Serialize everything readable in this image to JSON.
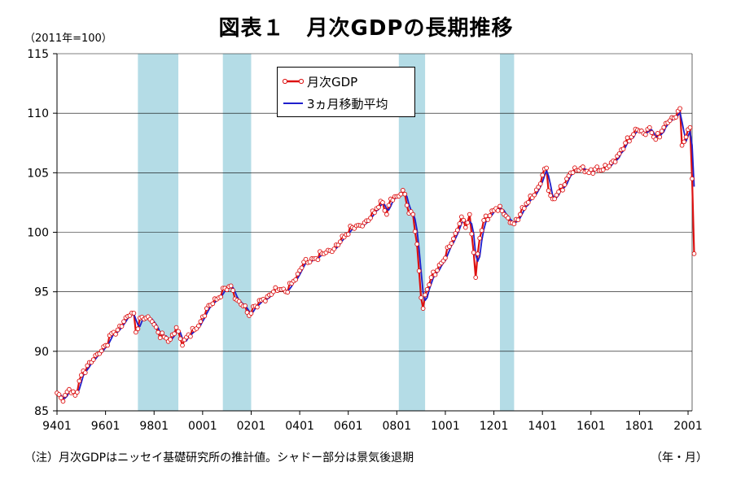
{
  "title": "図表１　月次GDPの長期推移",
  "unit_label": "（2011年=100）",
  "note": "（注）月次GDPはニッセイ基礎研究所の推計値。シャドー部分は景気後退期",
  "x_unit": "（年・月）",
  "colors": {
    "monthly": "#dd1111",
    "avg": "#1f1fcc",
    "shade": "#b4dce6"
  },
  "chart_data": {
    "type": "line",
    "ylim": [
      85,
      115
    ],
    "yticks": [
      85,
      90,
      95,
      100,
      105,
      110,
      115
    ],
    "xlim": [
      0,
      314
    ],
    "xticks": [
      {
        "label": "9401",
        "i": 0
      },
      {
        "label": "9601",
        "i": 24
      },
      {
        "label": "9801",
        "i": 48
      },
      {
        "label": "0001",
        "i": 72
      },
      {
        "label": "0201",
        "i": 96
      },
      {
        "label": "0401",
        "i": 120
      },
      {
        "label": "0601",
        "i": 144
      },
      {
        "label": "0801",
        "i": 168
      },
      {
        "label": "1001",
        "i": 192
      },
      {
        "label": "1201",
        "i": 216
      },
      {
        "label": "1401",
        "i": 240
      },
      {
        "label": "1601",
        "i": 264
      },
      {
        "label": "1801",
        "i": 288
      },
      {
        "label": "2001",
        "i": 312
      }
    ],
    "recessions": [
      {
        "from": "1997-05",
        "to": "1999-01"
      },
      {
        "from": "2000-11",
        "to": "2002-01"
      },
      {
        "from": "2008-02",
        "to": "2009-03"
      },
      {
        "from": "2012-04",
        "to": "2012-11"
      }
    ],
    "start": "1994-01",
    "legend": [
      {
        "key": "monthly",
        "label": "月次GDP"
      },
      {
        "key": "avg",
        "label": "3ヵ月移動平均"
      }
    ],
    "series": [
      {
        "name": "月次GDP",
        "key": "monthly",
        "anchors": [
          [
            "1994-01",
            86.5
          ],
          [
            "1994-04",
            85.8
          ],
          [
            "1994-07",
            86.8
          ],
          [
            "1994-10",
            86.3
          ],
          [
            "1995-01",
            88.0
          ],
          [
            "1995-04",
            88.8
          ],
          [
            "1995-07",
            89.3
          ],
          [
            "1995-10",
            89.8
          ],
          [
            "1996-01",
            90.5
          ],
          [
            "1996-04",
            91.5
          ],
          [
            "1996-07",
            91.8
          ],
          [
            "1996-10",
            92.5
          ],
          [
            "1997-01",
            93.0
          ],
          [
            "1997-03",
            93.2
          ],
          [
            "1997-04",
            91.6
          ],
          [
            "1997-06",
            92.8
          ],
          [
            "1997-09",
            92.8
          ],
          [
            "1997-12",
            92.5
          ],
          [
            "1998-03",
            91.6
          ],
          [
            "1998-06",
            91.2
          ],
          [
            "1998-09",
            91.0
          ],
          [
            "1998-12",
            92.0
          ],
          [
            "1999-03",
            90.5
          ],
          [
            "1999-06",
            91.4
          ],
          [
            "1999-09",
            91.8
          ],
          [
            "1999-12",
            92.5
          ],
          [
            "2000-03",
            93.6
          ],
          [
            "2000-06",
            94.0
          ],
          [
            "2000-09",
            94.5
          ],
          [
            "2000-12",
            95.3
          ],
          [
            "2001-03",
            95.5
          ],
          [
            "2001-06",
            94.3
          ],
          [
            "2001-09",
            93.8
          ],
          [
            "2001-12",
            93.0
          ],
          [
            "2002-03",
            93.8
          ],
          [
            "2002-06",
            94.3
          ],
          [
            "2002-09",
            94.6
          ],
          [
            "2002-12",
            95.0
          ],
          [
            "2003-03",
            95.2
          ],
          [
            "2003-06",
            95.0
          ],
          [
            "2003-09",
            95.7
          ],
          [
            "2003-12",
            96.5
          ],
          [
            "2004-03",
            97.5
          ],
          [
            "2004-06",
            97.5
          ],
          [
            "2004-09",
            97.8
          ],
          [
            "2004-12",
            98.2
          ],
          [
            "2005-03",
            98.5
          ],
          [
            "2005-06",
            98.6
          ],
          [
            "2005-09",
            99.2
          ],
          [
            "2005-12",
            99.8
          ],
          [
            "2006-03",
            100.4
          ],
          [
            "2006-06",
            100.6
          ],
          [
            "2006-09",
            100.8
          ],
          [
            "2006-12",
            101.2
          ],
          [
            "2007-03",
            102.0
          ],
          [
            "2007-06",
            102.5
          ],
          [
            "2007-08",
            101.5
          ],
          [
            "2007-10",
            102.8
          ],
          [
            "2007-12",
            103.0
          ],
          [
            "2008-03",
            103.2
          ],
          [
            "2008-05",
            103.2
          ],
          [
            "2008-07",
            101.6
          ],
          [
            "2008-09",
            101.5
          ],
          [
            "2008-11",
            99.0
          ],
          [
            "2009-01",
            94.5
          ],
          [
            "2009-02",
            93.6
          ],
          [
            "2009-04",
            95.2
          ],
          [
            "2009-06",
            96.2
          ],
          [
            "2009-09",
            96.8
          ],
          [
            "2009-12",
            97.6
          ],
          [
            "2010-03",
            98.8
          ],
          [
            "2010-06",
            99.9
          ],
          [
            "2010-09",
            101.3
          ],
          [
            "2010-11",
            100.4
          ],
          [
            "2011-01",
            101.5
          ],
          [
            "2011-03",
            98.3
          ],
          [
            "2011-04",
            96.2
          ],
          [
            "2011-06",
            99.5
          ],
          [
            "2011-08",
            101.0
          ],
          [
            "2011-11",
            101.4
          ],
          [
            "2012-02",
            102.0
          ],
          [
            "2012-05",
            101.8
          ],
          [
            "2012-08",
            101.2
          ],
          [
            "2012-11",
            100.7
          ],
          [
            "2013-02",
            101.5
          ],
          [
            "2013-05",
            102.4
          ],
          [
            "2013-08",
            102.9
          ],
          [
            "2013-11",
            103.8
          ],
          [
            "2014-01",
            104.8
          ],
          [
            "2014-03",
            105.4
          ],
          [
            "2014-04",
            103.5
          ],
          [
            "2014-06",
            102.8
          ],
          [
            "2014-09",
            103.4
          ],
          [
            "2014-12",
            104.0
          ],
          [
            "2015-03",
            105.0
          ],
          [
            "2015-06",
            105.2
          ],
          [
            "2015-09",
            105.5
          ],
          [
            "2015-12",
            105.0
          ],
          [
            "2016-03",
            105.3
          ],
          [
            "2016-06",
            105.2
          ],
          [
            "2016-09",
            105.4
          ],
          [
            "2016-12",
            106.0
          ],
          [
            "2017-03",
            106.6
          ],
          [
            "2017-06",
            107.5
          ],
          [
            "2017-09",
            108.0
          ],
          [
            "2017-12",
            108.6
          ],
          [
            "2018-03",
            108.3
          ],
          [
            "2018-06",
            108.8
          ],
          [
            "2018-09",
            107.8
          ],
          [
            "2018-12",
            108.5
          ],
          [
            "2019-03",
            109.2
          ],
          [
            "2019-06",
            109.6
          ],
          [
            "2019-09",
            110.4
          ],
          [
            "2019-10",
            107.3
          ],
          [
            "2019-12",
            108.0
          ],
          [
            "2020-02",
            108.8
          ],
          [
            "2020-03",
            104.5
          ],
          [
            "2020-04",
            98.2
          ]
        ]
      },
      {
        "name": "3ヵ月移動平均",
        "key": "avg",
        "derived_from": "月次GDP",
        "window": 3
      }
    ]
  }
}
